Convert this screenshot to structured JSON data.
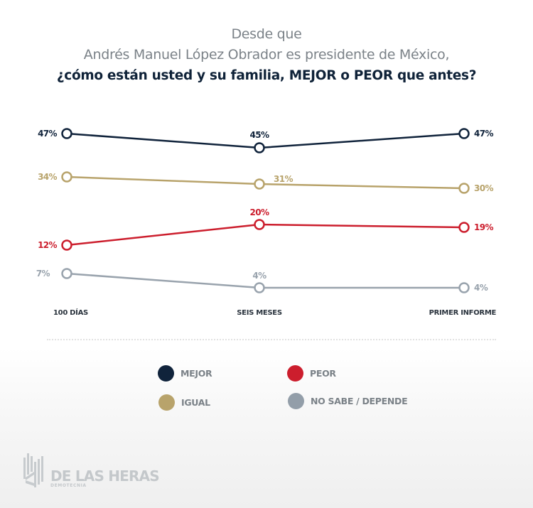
{
  "title": {
    "line1": "Desde que",
    "line2": "Andrés Manuel López Obrador es presidente de México,",
    "line3": "¿cómo están usted y su familia, MEJOR o PEOR que antes?"
  },
  "chart_data": {
    "type": "line",
    "title": "Desde que Andrés Manuel López Obrador es presidente de México, ¿cómo están usted y su familia, MEJOR o PEOR que antes?",
    "categories": [
      "100 DÍAS",
      "SEIS MESES",
      "PRIMER INFORME"
    ],
    "xlabel": "",
    "ylabel": "",
    "ylim": [
      0,
      50
    ],
    "grid": false,
    "legend_position": "bottom",
    "series": [
      {
        "name": "MEJOR",
        "color": "#10233b",
        "values": [
          47,
          45,
          47
        ],
        "labels": [
          "47%",
          "45%",
          "47%"
        ]
      },
      {
        "name": "IGUAL",
        "color": "#b8a36b",
        "values": [
          34,
          31,
          30
        ],
        "labels": [
          "34%",
          "31%",
          "30%"
        ]
      },
      {
        "name": "PEOR",
        "color": "#cc1e2d",
        "values": [
          12,
          20,
          19
        ],
        "labels": [
          "12%",
          "20%",
          "19%"
        ]
      },
      {
        "name": "NO SABE / DEPENDE",
        "color": "#99a3ad",
        "values": [
          7,
          4,
          4
        ],
        "labels": [
          "7%",
          "4%",
          "4%"
        ]
      }
    ]
  },
  "legend": [
    {
      "label": "MEJOR",
      "color": "#10233b"
    },
    {
      "label": "PEOR",
      "color": "#cc1e2d"
    },
    {
      "label": "IGUAL",
      "color": "#b8a36b"
    },
    {
      "label": "NO SABE / DEPENDE",
      "color": "#939ea9"
    }
  ],
  "logo": {
    "name": "DE LAS HERAS",
    "subtitle": "DEMOTECNIA"
  }
}
